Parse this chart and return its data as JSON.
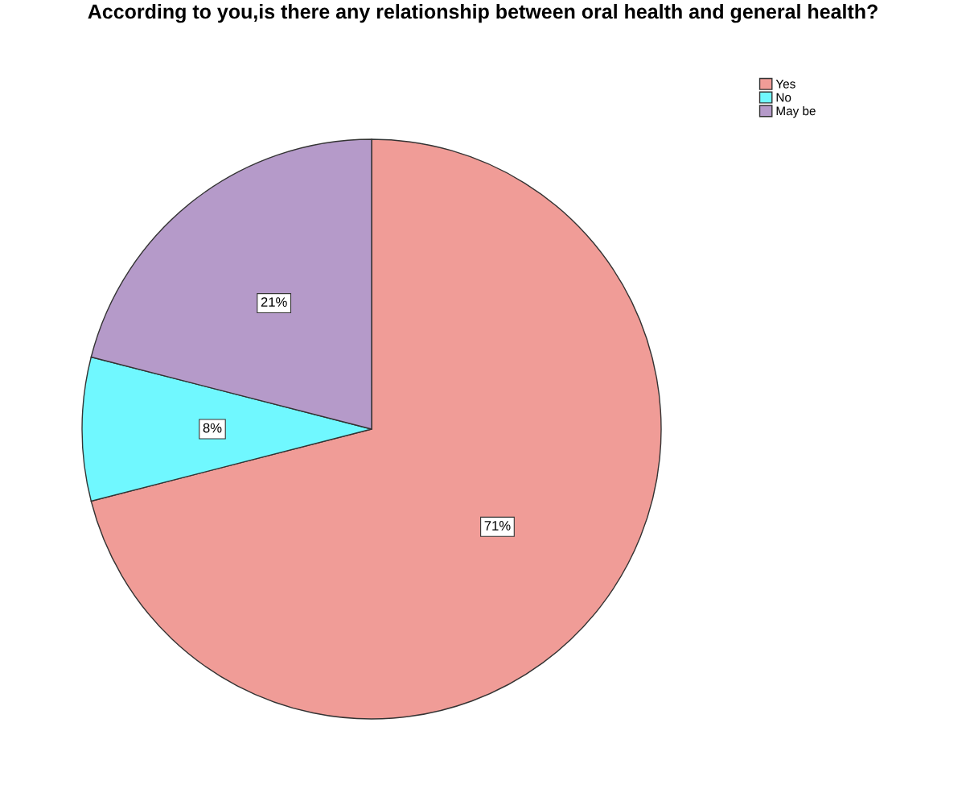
{
  "chart_data": {
    "type": "pie",
    "title": "According to you,is there any relationship between oral health and general health?",
    "categories": [
      "Yes",
      "No",
      "May be"
    ],
    "values": [
      71,
      8,
      21
    ],
    "colors": [
      "#f09c97",
      "#70f8ff",
      "#b59ac9"
    ],
    "value_labels": [
      "71%",
      "8%",
      "21%"
    ],
    "legend": "top right"
  }
}
